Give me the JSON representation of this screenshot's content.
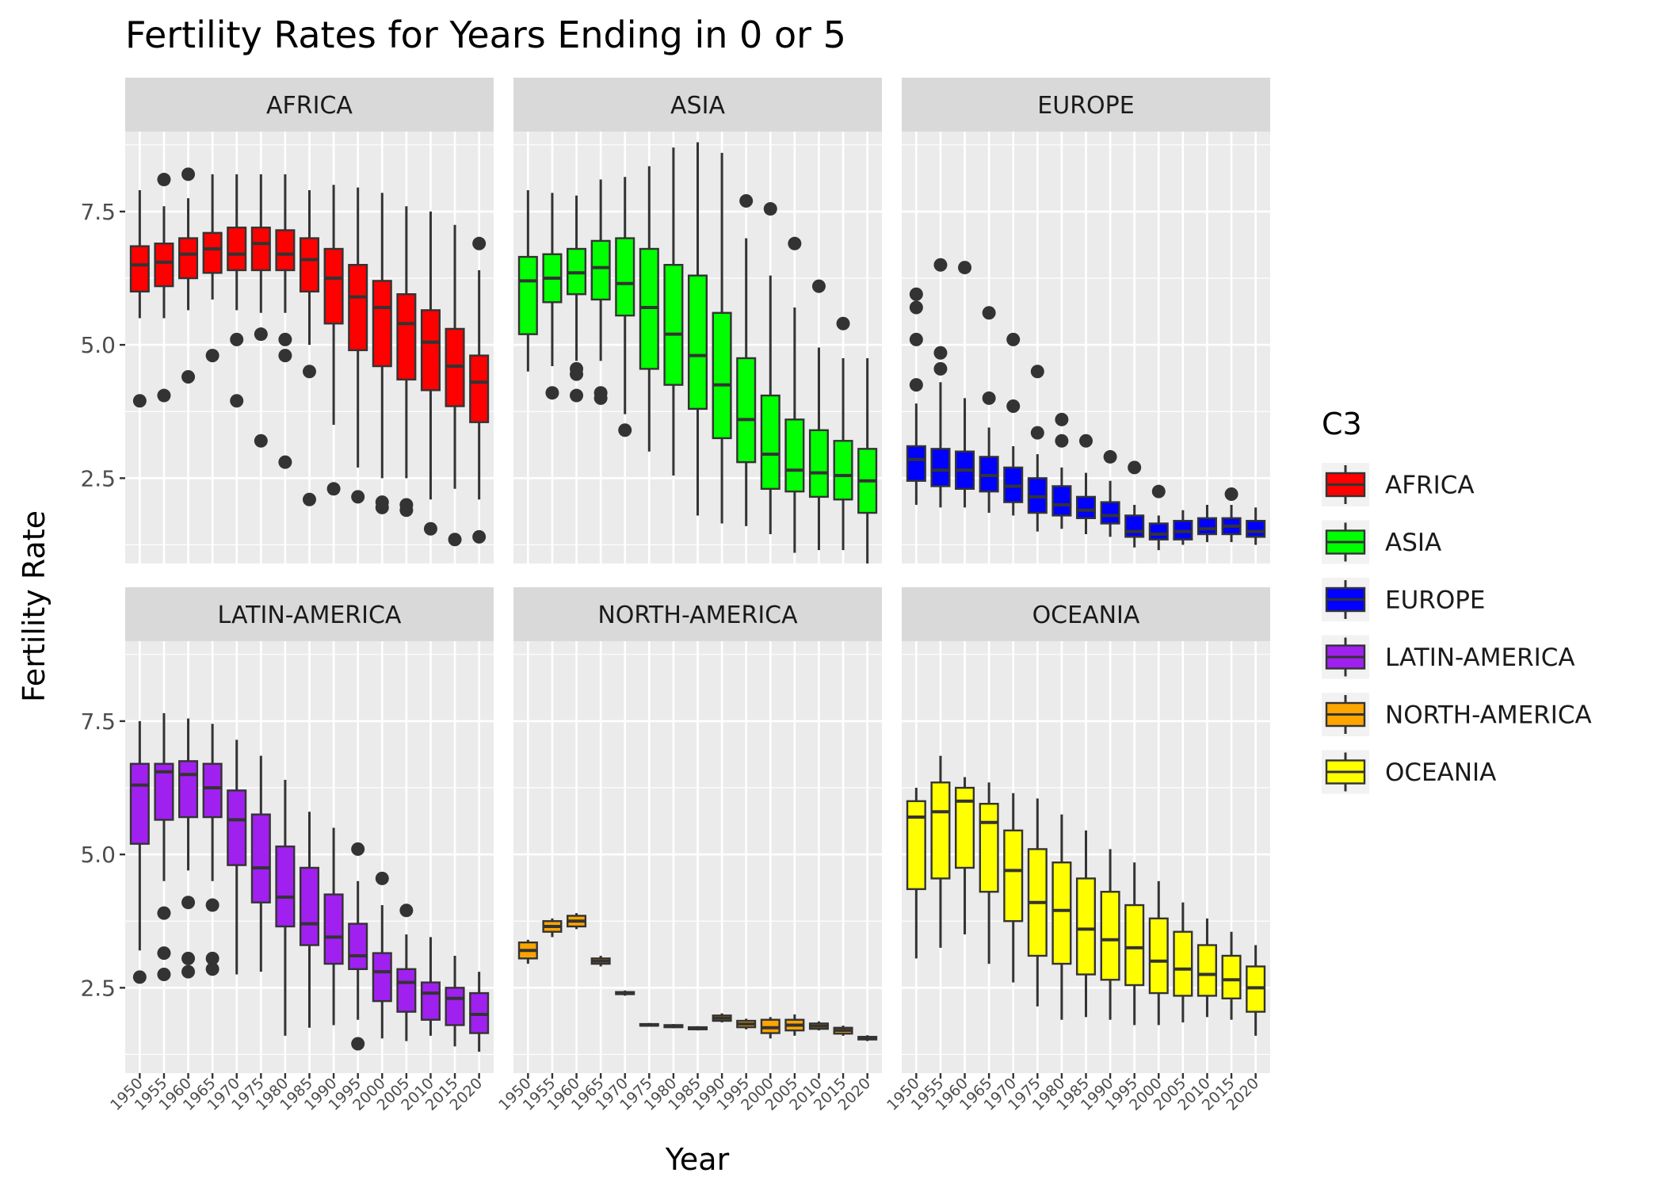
{
  "chart_data": {
    "type": "boxplot",
    "title": "Fertility Rates for Years Ending in 0 or 5",
    "xlabel": "Year",
    "ylabel": "Fertility Rate",
    "ylim": [
      0.9,
      9.0
    ],
    "yticks": [
      2.5,
      5.0,
      7.5
    ],
    "ytick_labels": [
      "2.5",
      "5.0",
      "7.5"
    ],
    "grid": true,
    "facet_layout": "2 rows x 3 columns",
    "legend": {
      "title": "C3",
      "position": "right",
      "entries": [
        "AFRICA",
        "ASIA",
        "EUROPE",
        "LATIN-AMERICA",
        "NORTH-AMERICA",
        "OCEANIA"
      ]
    },
    "categories": [
      "1950",
      "1955",
      "1960",
      "1965",
      "1970",
      "1975",
      "1980",
      "1985",
      "1990",
      "1995",
      "2000",
      "2005",
      "2010",
      "2015",
      "2020"
    ],
    "box_stats_order": [
      "whisker_low",
      "q1",
      "median",
      "q3",
      "whisker_high"
    ],
    "facets": [
      {
        "name": "AFRICA",
        "color": "#ff0000",
        "boxes": [
          [
            5.5,
            6.0,
            6.5,
            6.85,
            7.9
          ],
          [
            5.5,
            6.1,
            6.55,
            6.9,
            7.6
          ],
          [
            5.65,
            6.25,
            6.7,
            7.0,
            7.75
          ],
          [
            5.85,
            6.35,
            6.8,
            7.1,
            8.2
          ],
          [
            5.65,
            6.4,
            6.7,
            7.2,
            8.2
          ],
          [
            5.6,
            6.4,
            6.9,
            7.2,
            8.2
          ],
          [
            5.6,
            6.4,
            6.7,
            7.15,
            8.2
          ],
          [
            5.0,
            6.0,
            6.6,
            7.0,
            7.9
          ],
          [
            3.5,
            5.4,
            6.25,
            6.8,
            8.0
          ],
          [
            2.7,
            4.9,
            5.9,
            6.5,
            7.95
          ],
          [
            2.5,
            4.6,
            5.7,
            6.2,
            7.85
          ],
          [
            2.5,
            4.35,
            5.4,
            5.95,
            7.6
          ],
          [
            2.1,
            4.15,
            5.05,
            5.65,
            7.5
          ],
          [
            2.3,
            3.85,
            4.6,
            5.3,
            7.25
          ],
          [
            2.1,
            3.55,
            4.3,
            4.8,
            6.4
          ]
        ],
        "outliers": [
          [
            3.95
          ],
          [
            4.05,
            8.1
          ],
          [
            4.4,
            8.2
          ],
          [
            4.8
          ],
          [
            3.95,
            5.1
          ],
          [
            3.2,
            5.2
          ],
          [
            2.8,
            4.8,
            5.1
          ],
          [
            2.1,
            4.5
          ],
          [
            2.3
          ],
          [
            2.15
          ],
          [
            1.95,
            2.05
          ],
          [
            1.9,
            2.0
          ],
          [
            1.55
          ],
          [
            1.35
          ],
          [
            1.4,
            6.9
          ]
        ]
      },
      {
        "name": "ASIA",
        "color": "#00ff00",
        "boxes": [
          [
            4.5,
            5.2,
            6.2,
            6.65,
            7.9
          ],
          [
            4.6,
            5.8,
            6.25,
            6.7,
            7.85
          ],
          [
            4.7,
            5.95,
            6.35,
            6.8,
            7.8
          ],
          [
            4.7,
            5.85,
            6.45,
            6.95,
            8.1
          ],
          [
            3.7,
            5.55,
            6.15,
            7.0,
            8.15
          ],
          [
            3.0,
            4.55,
            5.7,
            6.8,
            8.35
          ],
          [
            2.55,
            4.25,
            5.2,
            6.5,
            8.7
          ],
          [
            1.8,
            3.8,
            4.8,
            6.3,
            8.8
          ],
          [
            1.65,
            3.25,
            4.25,
            5.6,
            8.6
          ],
          [
            1.6,
            2.8,
            3.6,
            4.75,
            7.0
          ],
          [
            1.45,
            2.3,
            2.95,
            4.05,
            6.3
          ],
          [
            1.1,
            2.25,
            2.65,
            3.6,
            5.7
          ],
          [
            1.15,
            2.15,
            2.6,
            3.4,
            4.95
          ],
          [
            1.15,
            2.1,
            2.55,
            3.2,
            4.75
          ],
          [
            0.9,
            1.85,
            2.45,
            3.05,
            4.75
          ]
        ],
        "outliers": [
          [],
          [
            4.1
          ],
          [
            4.05,
            4.45,
            4.55
          ],
          [
            4.0,
            4.1
          ],
          [
            3.4
          ],
          [],
          [],
          [],
          [],
          [
            7.7
          ],
          [
            7.55
          ],
          [
            6.9
          ],
          [
            6.1
          ],
          [
            5.4
          ],
          []
        ]
      },
      {
        "name": "EUROPE",
        "color": "#0000ff",
        "boxes": [
          [
            2.0,
            2.45,
            2.85,
            3.1,
            3.9
          ],
          [
            1.95,
            2.35,
            2.65,
            3.05,
            4.3
          ],
          [
            1.95,
            2.3,
            2.65,
            3.0,
            4.0
          ],
          [
            1.85,
            2.25,
            2.55,
            2.9,
            3.45
          ],
          [
            1.8,
            2.05,
            2.35,
            2.7,
            3.1
          ],
          [
            1.5,
            1.85,
            2.15,
            2.5,
            2.95
          ],
          [
            1.55,
            1.8,
            2.0,
            2.35,
            2.7
          ],
          [
            1.45,
            1.75,
            1.9,
            2.15,
            2.6
          ],
          [
            1.4,
            1.65,
            1.8,
            2.05,
            2.45
          ],
          [
            1.2,
            1.4,
            1.5,
            1.8,
            2.0
          ],
          [
            1.15,
            1.35,
            1.45,
            1.65,
            1.8
          ],
          [
            1.25,
            1.35,
            1.5,
            1.7,
            1.9
          ],
          [
            1.3,
            1.45,
            1.55,
            1.75,
            2.0
          ],
          [
            1.3,
            1.45,
            1.6,
            1.75,
            2.0
          ],
          [
            1.25,
            1.4,
            1.5,
            1.7,
            1.95
          ]
        ],
        "outliers": [
          [
            4.25,
            5.1,
            5.7,
            5.95
          ],
          [
            4.55,
            4.85,
            6.5
          ],
          [
            6.45
          ],
          [
            4.0,
            5.6
          ],
          [
            3.85,
            5.1
          ],
          [
            3.35,
            4.5
          ],
          [
            3.2,
            3.6
          ],
          [
            3.2
          ],
          [
            2.9
          ],
          [
            2.7
          ],
          [
            2.25
          ],
          [],
          [],
          [
            2.2
          ],
          []
        ]
      },
      {
        "name": "LATIN-AMERICA",
        "color": "#a020f0",
        "boxes": [
          [
            3.2,
            5.2,
            6.3,
            6.7,
            7.5
          ],
          [
            4.5,
            5.65,
            6.55,
            6.7,
            7.65
          ],
          [
            4.7,
            5.7,
            6.5,
            6.75,
            7.55
          ],
          [
            4.5,
            5.7,
            6.25,
            6.7,
            7.45
          ],
          [
            2.75,
            4.8,
            5.65,
            6.2,
            7.15
          ],
          [
            2.8,
            4.1,
            4.75,
            5.75,
            6.85
          ],
          [
            1.6,
            3.65,
            4.2,
            5.15,
            6.4
          ],
          [
            1.75,
            3.3,
            3.7,
            4.75,
            5.8
          ],
          [
            1.8,
            2.95,
            3.45,
            4.25,
            5.5
          ],
          [
            1.9,
            2.85,
            3.1,
            3.7,
            4.5
          ],
          [
            1.55,
            2.25,
            2.8,
            3.15,
            4.05
          ],
          [
            1.5,
            2.05,
            2.6,
            2.85,
            3.5
          ],
          [
            1.6,
            1.9,
            2.4,
            2.6,
            3.45
          ],
          [
            1.4,
            1.8,
            2.3,
            2.5,
            3.1
          ],
          [
            1.3,
            1.65,
            2.0,
            2.4,
            2.8
          ]
        ],
        "outliers": [
          [
            2.7
          ],
          [
            2.75,
            3.15,
            3.9
          ],
          [
            2.8,
            3.05,
            4.1
          ],
          [
            2.85,
            3.05,
            4.05
          ],
          [],
          [],
          [],
          [],
          [],
          [
            1.45,
            5.1
          ],
          [
            4.55
          ],
          [
            3.95
          ],
          [],
          [],
          []
        ]
      },
      {
        "name": "NORTH-AMERICA",
        "color": "#ffa500",
        "boxes": [
          [
            2.95,
            3.05,
            3.2,
            3.35,
            3.4
          ],
          [
            3.45,
            3.55,
            3.65,
            3.75,
            3.8
          ],
          [
            3.6,
            3.65,
            3.75,
            3.85,
            3.9
          ],
          [
            2.9,
            2.95,
            3.0,
            3.05,
            3.1
          ],
          [
            2.35,
            2.38,
            2.4,
            2.42,
            2.45
          ],
          [
            1.77,
            1.79,
            1.8,
            1.82,
            1.84
          ],
          [
            1.74,
            1.76,
            1.78,
            1.8,
            1.82
          ],
          [
            1.7,
            1.72,
            1.74,
            1.76,
            1.78
          ],
          [
            1.85,
            1.88,
            1.93,
            1.98,
            2.02
          ],
          [
            1.72,
            1.76,
            1.82,
            1.88,
            1.92
          ],
          [
            1.55,
            1.65,
            1.75,
            1.9,
            1.95
          ],
          [
            1.6,
            1.7,
            1.8,
            1.9,
            2.0
          ],
          [
            1.7,
            1.73,
            1.78,
            1.83,
            1.87
          ],
          [
            1.6,
            1.64,
            1.7,
            1.75,
            1.79
          ],
          [
            1.5,
            1.53,
            1.55,
            1.58,
            1.61
          ]
        ],
        "outliers": [
          [],
          [],
          [],
          [],
          [],
          [],
          [],
          [],
          [],
          [],
          [],
          [],
          [],
          [],
          []
        ]
      },
      {
        "name": "OCEANIA",
        "color": "#ffff00",
        "boxes": [
          [
            3.05,
            4.35,
            5.7,
            6.0,
            6.25
          ],
          [
            3.25,
            4.55,
            5.8,
            6.35,
            6.85
          ],
          [
            3.5,
            4.75,
            6.0,
            6.25,
            6.45
          ],
          [
            2.95,
            4.3,
            5.6,
            5.95,
            6.35
          ],
          [
            2.6,
            3.75,
            4.7,
            5.45,
            6.15
          ],
          [
            2.15,
            3.1,
            4.1,
            5.1,
            6.05
          ],
          [
            1.9,
            2.95,
            3.95,
            4.85,
            5.75
          ],
          [
            1.95,
            2.75,
            3.6,
            4.55,
            5.45
          ],
          [
            1.9,
            2.65,
            3.4,
            4.3,
            5.1
          ],
          [
            1.8,
            2.55,
            3.25,
            4.05,
            4.85
          ],
          [
            1.8,
            2.4,
            3.0,
            3.8,
            4.5
          ],
          [
            1.85,
            2.35,
            2.85,
            3.55,
            4.1
          ],
          [
            1.95,
            2.35,
            2.75,
            3.3,
            3.8
          ],
          [
            1.9,
            2.3,
            2.65,
            3.1,
            3.55
          ],
          [
            1.6,
            2.05,
            2.5,
            2.9,
            3.3
          ]
        ],
        "outliers": [
          [],
          [],
          [],
          [],
          [],
          [],
          [],
          [],
          [],
          [],
          [],
          [],
          [],
          [],
          []
        ]
      }
    ]
  }
}
